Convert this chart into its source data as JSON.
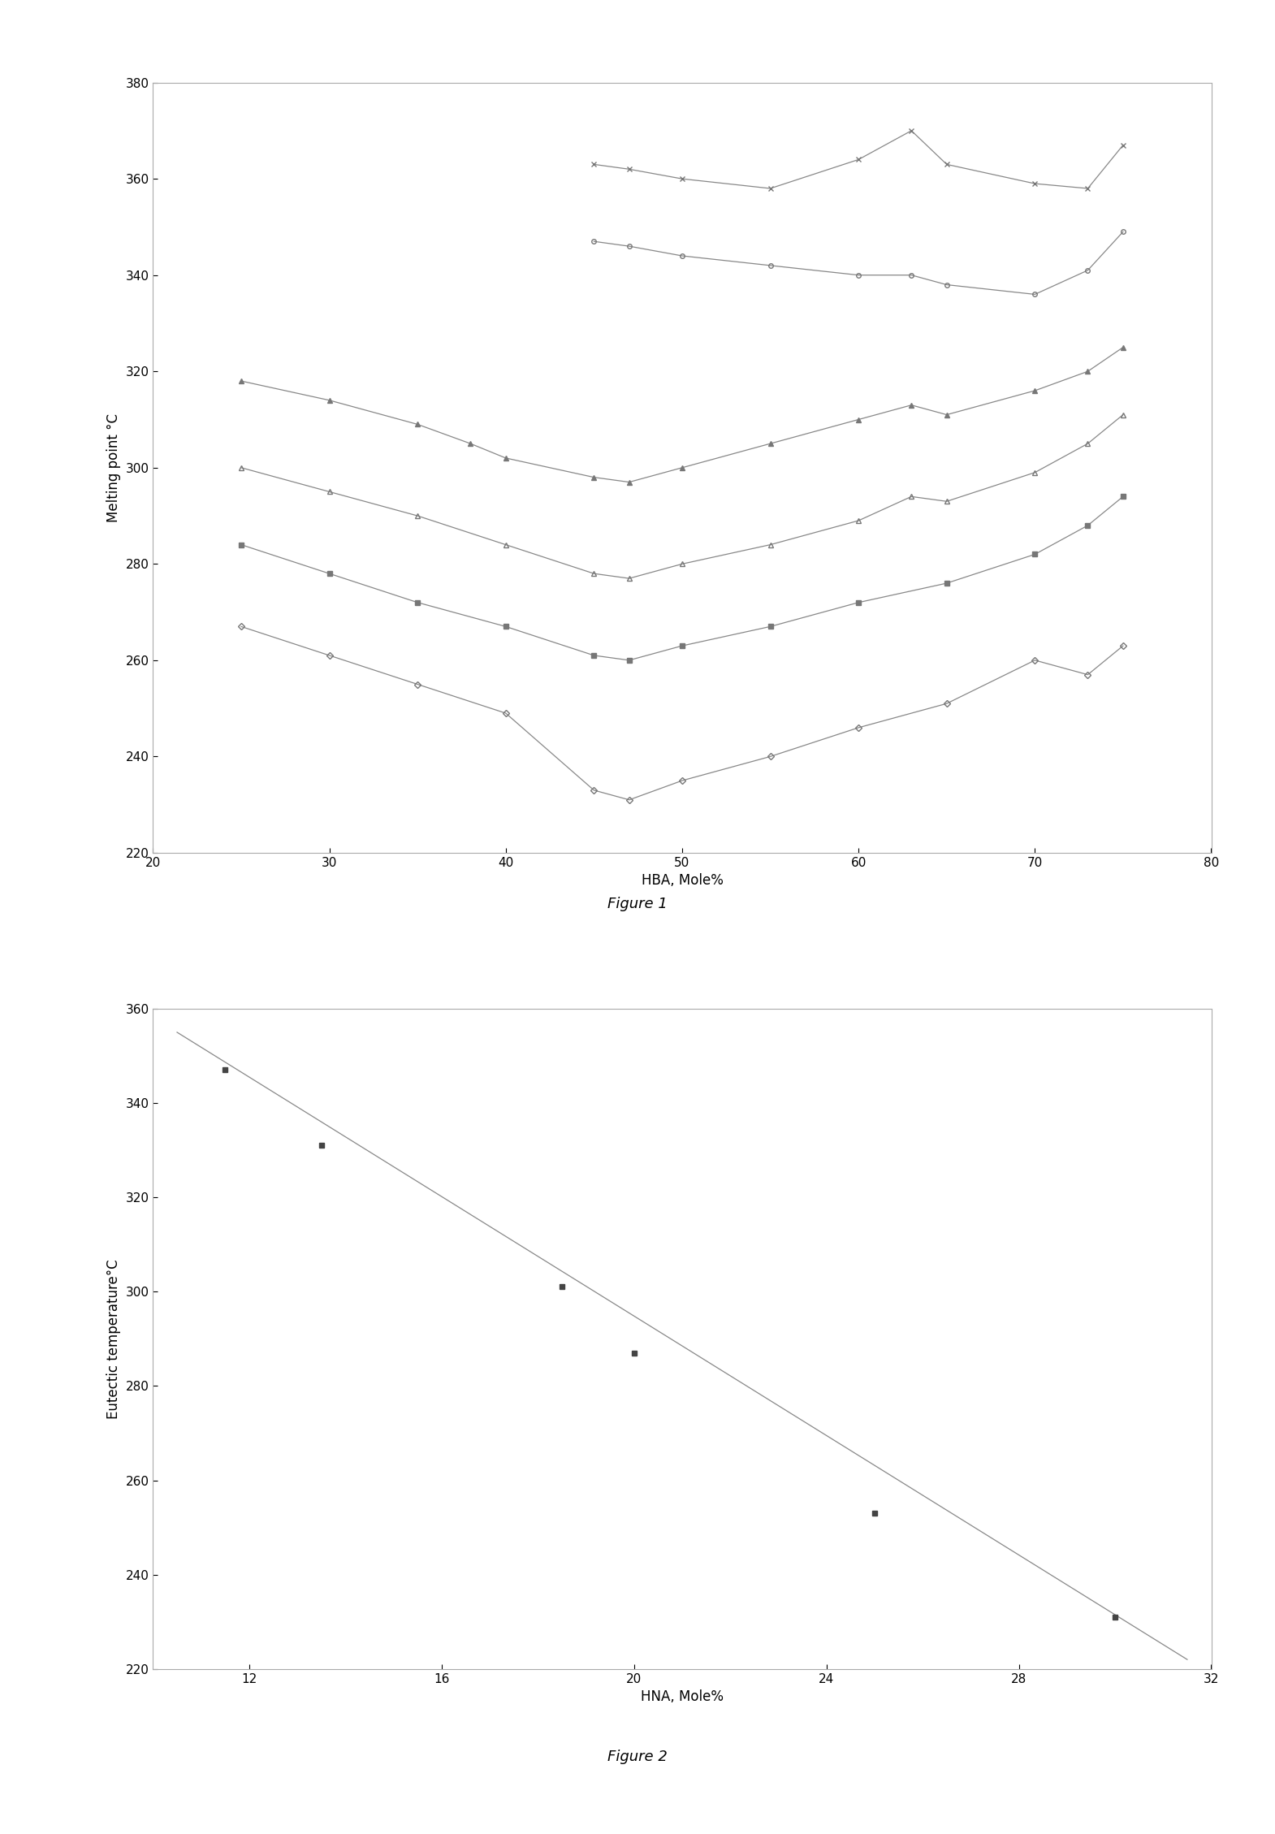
{
  "fig1": {
    "title": "Figure 1",
    "xlabel": "HBA, Mole%",
    "ylabel": "Melting point °C",
    "xlim": [
      20,
      80
    ],
    "ylim": [
      220,
      380
    ],
    "xticks": [
      20,
      30,
      40,
      50,
      60,
      70,
      80
    ],
    "yticks": [
      220,
      240,
      260,
      280,
      300,
      320,
      340,
      360,
      380
    ],
    "curves": [
      {
        "x": [
          25,
          30,
          35,
          40,
          45,
          47,
          50,
          55,
          60,
          65,
          70,
          73,
          75
        ],
        "y": [
          267,
          261,
          255,
          249,
          233,
          231,
          235,
          240,
          246,
          251,
          260,
          257,
          263
        ],
        "marker": "D",
        "markersize": 4,
        "fillstyle": "none",
        "color": "#777777"
      },
      {
        "x": [
          25,
          30,
          35,
          40,
          45,
          47,
          50,
          55,
          60,
          65,
          70,
          73,
          75
        ],
        "y": [
          284,
          278,
          272,
          267,
          261,
          260,
          263,
          267,
          272,
          276,
          282,
          288,
          294
        ],
        "marker": "s",
        "markersize": 4,
        "fillstyle": "full",
        "color": "#777777"
      },
      {
        "x": [
          25,
          30,
          35,
          40,
          45,
          47,
          50,
          55,
          60,
          63,
          65,
          70,
          73,
          75
        ],
        "y": [
          300,
          295,
          290,
          284,
          278,
          277,
          280,
          284,
          289,
          294,
          293,
          299,
          305,
          311
        ],
        "marker": "^",
        "markersize": 4,
        "fillstyle": "none",
        "color": "#777777"
      },
      {
        "x": [
          25,
          30,
          35,
          38,
          40,
          45,
          47,
          50,
          55,
          60,
          63,
          65,
          70,
          73,
          75
        ],
        "y": [
          318,
          314,
          309,
          305,
          302,
          298,
          297,
          300,
          305,
          310,
          313,
          311,
          316,
          320,
          325
        ],
        "marker": "^",
        "markersize": 4,
        "fillstyle": "full",
        "color": "#777777"
      },
      {
        "x": [
          45,
          47,
          50,
          55,
          60,
          63,
          65,
          70,
          73,
          75
        ],
        "y": [
          347,
          346,
          344,
          342,
          340,
          340,
          338,
          336,
          341,
          349
        ],
        "marker": "o",
        "markersize": 4,
        "fillstyle": "none",
        "color": "#777777"
      },
      {
        "x": [
          45,
          47,
          50,
          55,
          60,
          63,
          65,
          70,
          73,
          75
        ],
        "y": [
          363,
          362,
          360,
          358,
          364,
          370,
          363,
          359,
          358,
          367
        ],
        "marker": "x",
        "markersize": 5,
        "fillstyle": "full",
        "color": "#777777"
      }
    ]
  },
  "fig2": {
    "title": "Figure 2",
    "xlabel": "HNA, Mole%",
    "ylabel": "Eutectic temperature°C",
    "xlim": [
      10,
      32
    ],
    "ylim": [
      220,
      360
    ],
    "xticks": [
      12,
      16,
      20,
      24,
      28,
      32
    ],
    "yticks": [
      220,
      240,
      260,
      280,
      300,
      320,
      340,
      360
    ],
    "points_x": [
      11.5,
      13.5,
      18.5,
      20.0,
      25.0,
      30.0
    ],
    "points_y": [
      347,
      331,
      301,
      287,
      253,
      231
    ],
    "line_x": [
      10.5,
      31.5
    ],
    "line_y": [
      355,
      222
    ],
    "marker": "s",
    "markersize": 5,
    "color": "#444444"
  },
  "background_color": "#ffffff",
  "line_color": "#888888",
  "font_size": 12,
  "tick_font_size": 11,
  "caption_fontsize": 13
}
